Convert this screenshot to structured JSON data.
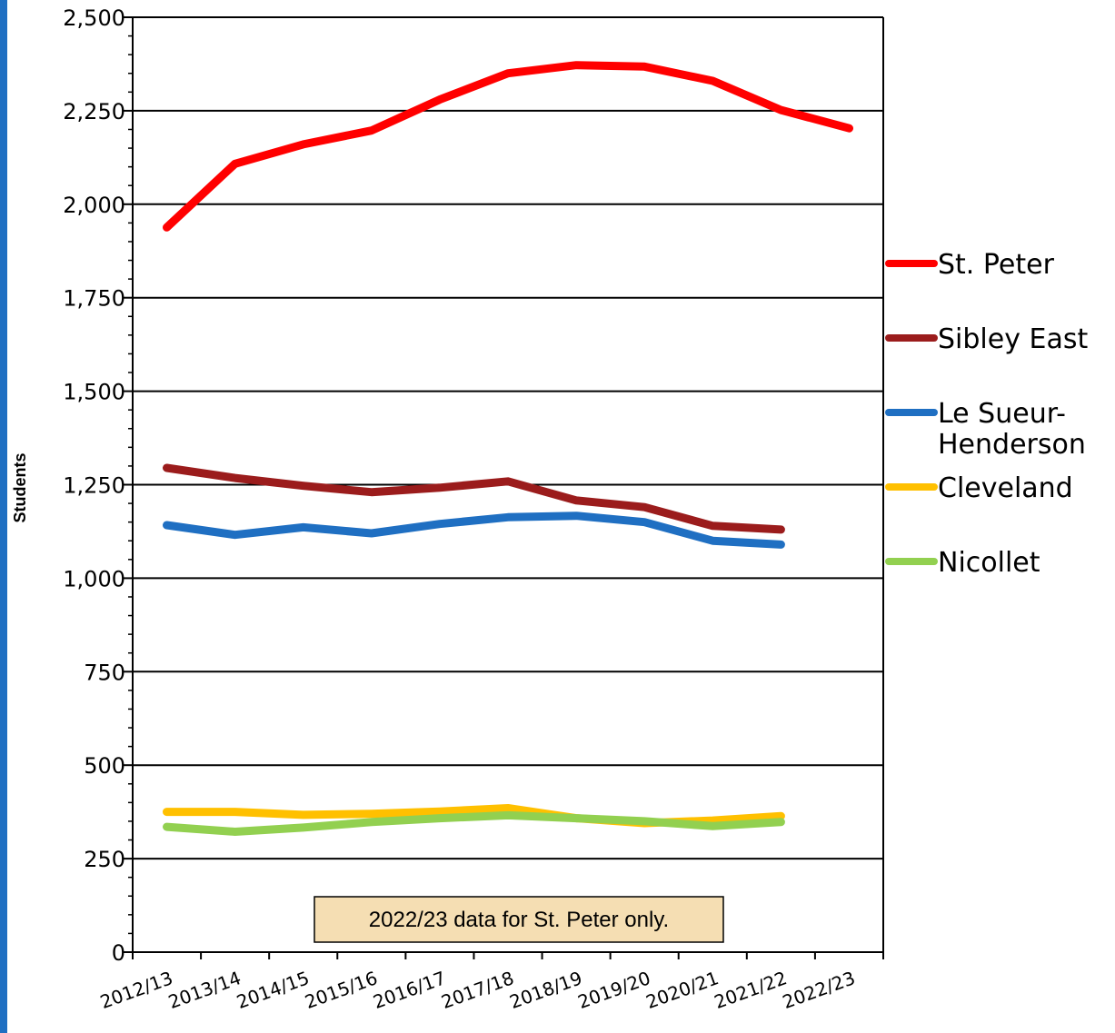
{
  "chart_data": {
    "type": "line",
    "ylabel": "Students",
    "ylim": [
      0,
      2500
    ],
    "y_ticks": [
      0,
      250,
      500,
      750,
      1000,
      1250,
      1500,
      1750,
      2000,
      2250,
      2500
    ],
    "y_tick_labels": [
      "0",
      "250",
      "500",
      "750",
      "1,000",
      "1,250",
      "1,500",
      "1,750",
      "2,000",
      "2,250",
      "2,500"
    ],
    "categories": [
      "2012/13",
      "2013/14",
      "2014/15",
      "2015/16",
      "2016/17",
      "2017/18",
      "2018/19",
      "2019/20",
      "2020/21",
      "2021/22",
      "2022/23"
    ],
    "grid": true,
    "legend_position": "right",
    "annotation": "2022/23 data for St. Peter only.",
    "series": [
      {
        "name": "St. Peter",
        "color": "#ff0000",
        "values": [
          1938,
          2108,
          2160,
          2197,
          2280,
          2350,
          2372,
          2368,
          2330,
          2252,
          2203
        ]
      },
      {
        "name": "Sibley East",
        "color": "#9b1c1c",
        "values": [
          1295,
          1268,
          1247,
          1230,
          1242,
          1259,
          1208,
          1190,
          1140,
          1130,
          null
        ]
      },
      {
        "name": "Le Sueur-Henderson",
        "color": "#1f6fc2",
        "values": [
          1142,
          1116,
          1136,
          1120,
          1145,
          1163,
          1167,
          1150,
          1100,
          1090,
          null
        ]
      },
      {
        "name": "Cleveland",
        "color": "#ffc000",
        "values": [
          375,
          375,
          367,
          370,
          376,
          385,
          358,
          345,
          352,
          364,
          null
        ]
      },
      {
        "name": "Nicollet",
        "color": "#92d050",
        "values": [
          335,
          322,
          333,
          348,
          358,
          366,
          358,
          350,
          337,
          348,
          null
        ]
      }
    ]
  }
}
